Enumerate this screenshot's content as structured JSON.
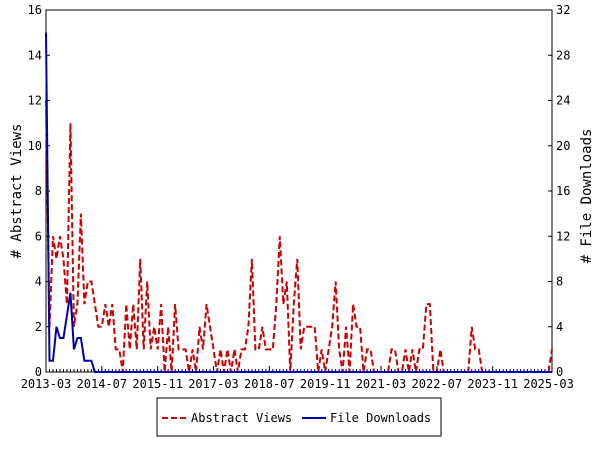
{
  "chart_data": {
    "type": "line",
    "title": "",
    "xlabel": "",
    "ylabel_left": "# Abstract Views",
    "ylabel_right": "# File Downloads",
    "ylim_left": [
      0,
      16
    ],
    "ylim_right": [
      0,
      32
    ],
    "y_ticks_left": [
      "0",
      "2",
      "4",
      "6",
      "8",
      "10",
      "12",
      "14",
      "16"
    ],
    "y_ticks_right": [
      "0",
      "4",
      "8",
      "12",
      "16",
      "20",
      "24",
      "28",
      "32"
    ],
    "x_tick_labels": [
      "2013-03",
      "2014-07",
      "2015-11",
      "2017-03",
      "2018-07",
      "2019-11",
      "2021-03",
      "2022-07",
      "2023-11",
      "2025-03"
    ],
    "x_range_months": [
      0,
      145
    ],
    "grid": false,
    "legend_position": "bottom",
    "series": [
      {
        "name": "Abstract Views",
        "axis": "left",
        "color": "#cc0000",
        "style": "dashed",
        "x_months": [
          0,
          1,
          2,
          3,
          4,
          5,
          6,
          7,
          8,
          9,
          10,
          11,
          12,
          13,
          14,
          15,
          16,
          17,
          18,
          19,
          20,
          21,
          22,
          23,
          24,
          25,
          26,
          27,
          28,
          29,
          30,
          31,
          32,
          33,
          34,
          35,
          36,
          37,
          38,
          39,
          40,
          41,
          42,
          43,
          44,
          45,
          46,
          47,
          48,
          49,
          50,
          51,
          52,
          53,
          54,
          55,
          56,
          57,
          58,
          59,
          60,
          61,
          62,
          63,
          64,
          65,
          66,
          67,
          68,
          69,
          70,
          71,
          72,
          73,
          74,
          75,
          76,
          77,
          78,
          79,
          80,
          81,
          82,
          83,
          84,
          85,
          86,
          87,
          88,
          89,
          90,
          91,
          92,
          93,
          94,
          95,
          96,
          97,
          98,
          99,
          100,
          101,
          102,
          103,
          104,
          105,
          106,
          107,
          108,
          109,
          110,
          111,
          112,
          113,
          114,
          115,
          116,
          117,
          118,
          119,
          120,
          121,
          122,
          123,
          124,
          125,
          126,
          127,
          128,
          129,
          130,
          131,
          132,
          133,
          134,
          135,
          136,
          137,
          138,
          139,
          140,
          141,
          142,
          143,
          144,
          145
        ],
        "values": [
          12,
          2,
          6,
          5,
          6,
          5,
          3,
          11,
          2,
          3,
          7,
          3,
          4,
          4,
          3,
          2,
          2,
          3,
          2,
          3,
          1,
          1,
          0,
          3,
          1,
          3,
          1,
          5,
          1,
          4,
          1,
          2,
          1,
          3,
          0,
          2,
          0,
          3,
          1,
          1,
          1,
          0,
          1,
          0,
          2,
          1,
          3,
          2,
          1,
          0,
          1,
          0,
          1,
          0,
          1,
          0,
          1,
          1,
          2,
          5,
          1,
          1,
          2,
          1,
          1,
          1,
          3,
          6,
          3,
          4,
          0,
          3,
          5,
          1,
          2,
          2,
          2,
          2,
          0,
          1,
          0,
          1,
          2,
          4,
          1,
          0,
          2,
          0,
          3,
          2,
          2,
          0,
          1,
          1,
          0,
          0,
          0,
          0,
          0,
          1,
          1,
          0,
          0,
          1,
          0,
          1,
          0,
          1,
          1,
          3,
          3,
          0,
          0,
          1,
          0,
          0,
          0,
          0,
          0,
          0,
          0,
          0,
          2,
          1,
          1,
          0,
          0,
          0,
          0,
          0,
          0,
          0,
          0,
          0,
          0,
          0,
          0,
          0,
          0,
          0,
          0,
          0,
          0,
          0,
          0,
          1
        ]
      },
      {
        "name": "File Downloads",
        "axis": "right",
        "color": "#0000aa",
        "style": "solid",
        "x_months": [
          0,
          1,
          2,
          3,
          4,
          5,
          6,
          7,
          8,
          9,
          10,
          11,
          12,
          13,
          14,
          145
        ],
        "values": [
          30,
          1,
          1,
          4,
          3,
          3,
          5,
          7,
          2,
          3,
          3,
          1,
          1,
          1,
          0,
          0
        ]
      }
    ]
  }
}
